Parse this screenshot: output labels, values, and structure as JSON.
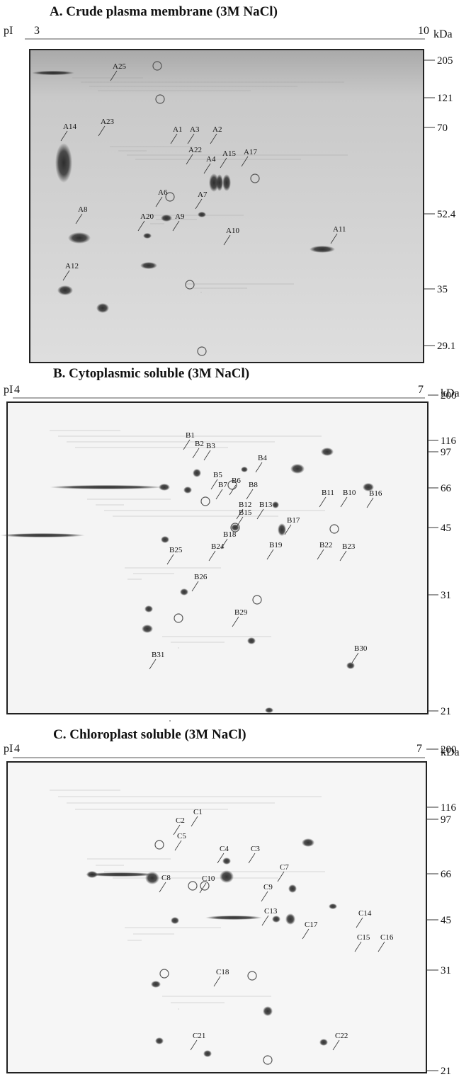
{
  "panels": [
    {
      "title": "A. Crude plasma membrane (3M NaCl)",
      "ph_label": "pI",
      "ph_ticks": [
        3,
        10
      ],
      "mw_unit": "kDa",
      "mw_ticks": [
        205,
        121,
        70,
        52.4,
        35,
        29.1
      ],
      "spots": [
        "A25",
        "A23",
        "A14",
        "A1",
        "A3",
        "A2",
        "A22",
        "A4",
        "A15",
        "A17",
        "A6",
        "A20",
        "A9",
        "A7",
        "A8",
        "A10",
        "A11",
        "A12"
      ]
    },
    {
      "title": "B. Cytoplasmic soluble (3M NaCl)",
      "ph_label": "pI",
      "ph_ticks": [
        4,
        7
      ],
      "mw_unit": "kDa",
      "mw_ticks": [
        200,
        116,
        97,
        66,
        45,
        31,
        21
      ],
      "spots": [
        "B1",
        "B2",
        "B3",
        "B4",
        "B5",
        "B7",
        "B6",
        "B8",
        "B12",
        "B13",
        "B15",
        "B11",
        "B10",
        "B16",
        "B17",
        "B18",
        "B19",
        "B22",
        "B23",
        "B25",
        "B24",
        "B26",
        "B29",
        "B30",
        "B31"
      ]
    },
    {
      "title": "C. Chloroplast soluble (3M NaCl)",
      "ph_label": "pI",
      "ph_ticks": [
        4,
        7
      ],
      "mw_unit": "kDa",
      "mw_ticks": [
        200,
        116,
        97,
        66,
        45,
        31,
        21
      ],
      "spots": [
        "C1",
        "C2",
        "C5",
        "C4",
        "C3",
        "C7",
        "C8",
        "C10",
        "C9",
        "C13",
        "C14",
        "C15",
        "C16",
        "C17",
        "C18",
        "C21",
        "C22"
      ]
    }
  ]
}
